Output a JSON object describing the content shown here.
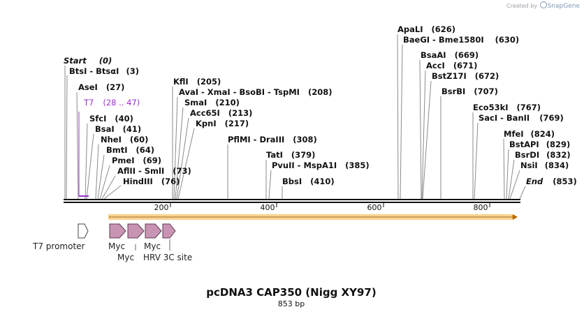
{
  "credit": {
    "prefix": "Created by",
    "brand": "SnapGene"
  },
  "title": "pcDNA3 CAP350 (Nigg XY97)",
  "subtitle": "853 bp",
  "ruler_ticks": [
    "200",
    "400",
    "600",
    "800"
  ],
  "sites": [
    {
      "name": "Start",
      "pos": "(0)"
    },
    {
      "name": "BtsI  -  BtsαI",
      "pos": "(3)"
    },
    {
      "name": "AseI",
      "pos": "(27)"
    },
    {
      "name": "T7",
      "pos": "(28 .. 47)"
    },
    {
      "name": "SfcI",
      "pos": "(40)"
    },
    {
      "name": "BsaI",
      "pos": "(41)"
    },
    {
      "name": "NheI",
      "pos": "(60)"
    },
    {
      "name": "BmtI",
      "pos": "(64)"
    },
    {
      "name": "PmeI",
      "pos": "(69)"
    },
    {
      "name": "AflII  -  SmlI",
      "pos": "(73)"
    },
    {
      "name": "HindIII",
      "pos": "(76)"
    },
    {
      "name": "KflI",
      "pos": "(205)"
    },
    {
      "name": "AvaI  -  XmaI  -  BsoBI  -  TspMI",
      "pos": "(208)"
    },
    {
      "name": "SmaI",
      "pos": "(210)"
    },
    {
      "name": "Acc65I",
      "pos": "(213)"
    },
    {
      "name": "KpnI",
      "pos": "(217)"
    },
    {
      "name": "PflMI  -  DraIII",
      "pos": "(308)"
    },
    {
      "name": "TatI",
      "pos": "(379)"
    },
    {
      "name": "PvuII  -  MspA1I",
      "pos": "(385)"
    },
    {
      "name": "BbsI",
      "pos": "(410)"
    },
    {
      "name": "ApaLI",
      "pos": "(626)"
    },
    {
      "name": "BaeGI  -  Bme1580I",
      "pos": "(630)"
    },
    {
      "name": "BsaAI",
      "pos": "(669)"
    },
    {
      "name": "AccI",
      "pos": "(671)"
    },
    {
      "name": "BstZ17I",
      "pos": "(672)"
    },
    {
      "name": "BsrBI",
      "pos": "(707)"
    },
    {
      "name": "Eco53kI",
      "pos": "(767)"
    },
    {
      "name": "SacI  -  BanII",
      "pos": "(769)"
    },
    {
      "name": "MfeI",
      "pos": "(824)"
    },
    {
      "name": "BstAPI",
      "pos": "(829)"
    },
    {
      "name": "BsrDI",
      "pos": "(832)"
    },
    {
      "name": "NsiI",
      "pos": "(834)"
    },
    {
      "name": "End",
      "pos": "(853)"
    }
  ],
  "features": [
    {
      "label": "T7 promoter"
    },
    {
      "label": "Myc"
    },
    {
      "label": "Myc"
    },
    {
      "label": "Myc"
    },
    {
      "label": "HRV 3C site"
    }
  ],
  "colors": {
    "feature_arrow": "#c994b4",
    "orf_fill": "#f5a623",
    "t7": "#9b30d0"
  }
}
